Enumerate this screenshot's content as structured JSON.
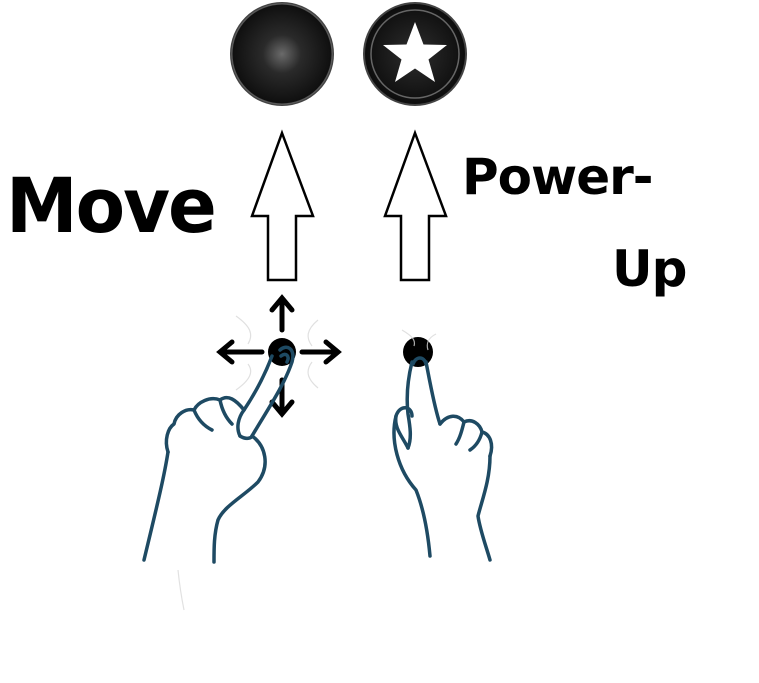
{
  "labels": {
    "move": "Move",
    "power_up_line1": "Power-",
    "power_up_line2": "Up"
  },
  "buttons": {
    "move_button": {
      "icon": "dot"
    },
    "power_up_button": {
      "icon": "star-icon"
    }
  },
  "gestures": {
    "left": "drag-in-four-directions",
    "right": "tap"
  },
  "colors": {
    "ink": "#000000",
    "hand_stroke": "#1e4a63",
    "button_fill": "#111111",
    "button_highlight": "#5a5a5a"
  }
}
